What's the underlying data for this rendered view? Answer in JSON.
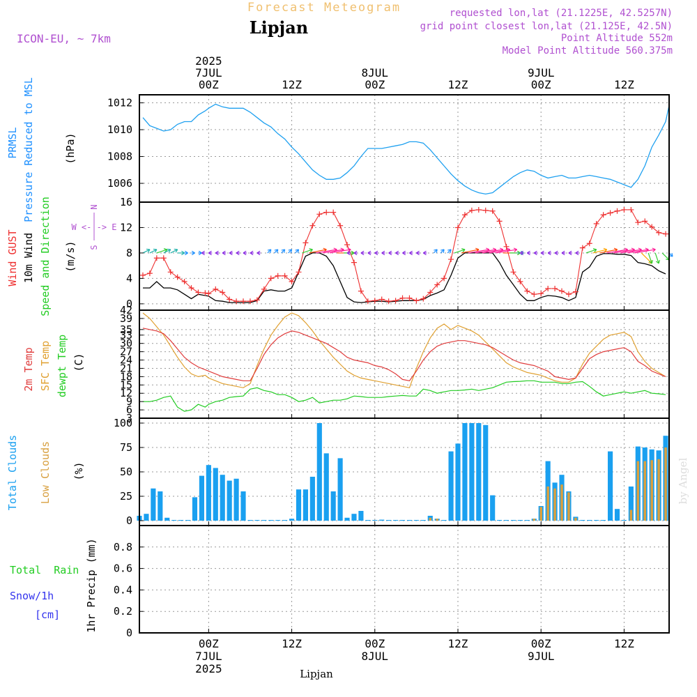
{
  "header": {
    "title": "Forecast Meteogram",
    "location": "Lipjan",
    "model": "ICON-EU, ~ 7km",
    "requested": "requested lon,lat (21.1225E, 42.5257N)",
    "gridpoint": "grid point closest lon,lat (21.125E, 42.5N)",
    "point_altitude": "Point Altitude 552m",
    "model_altitude": "Model Point Altitude 560.375m"
  },
  "time_axis": {
    "top_labels": [
      {
        "t": 0,
        "lines": [
          "2025",
          "7JUL",
          "00Z"
        ]
      },
      {
        "t": 12,
        "lines": [
          "",
          "",
          "12Z"
        ]
      },
      {
        "t": 24,
        "lines": [
          "",
          "8JUL",
          "00Z"
        ]
      },
      {
        "t": 36,
        "lines": [
          "",
          "",
          "12Z"
        ]
      },
      {
        "t": 48,
        "lines": [
          "",
          "9JUL",
          "00Z"
        ]
      },
      {
        "t": 60,
        "lines": [
          "",
          "",
          "12Z"
        ]
      }
    ],
    "bottom_labels": [
      {
        "t": 0,
        "lines": [
          "00Z",
          "7JUL",
          "2025"
        ]
      },
      {
        "t": 12,
        "lines": [
          "12Z",
          "",
          ""
        ]
      },
      {
        "t": 24,
        "lines": [
          "00Z",
          "8JUL",
          ""
        ]
      },
      {
        "t": 36,
        "lines": [
          "12Z",
          "",
          ""
        ]
      },
      {
        "t": 48,
        "lines": [
          "00Z",
          "9JUL",
          ""
        ]
      },
      {
        "t": 60,
        "lines": [
          "12Z",
          "",
          ""
        ]
      }
    ],
    "footer_label": "Lipjan",
    "credit": "by Angel"
  },
  "panel_labels": {
    "pressure": {
      "line1": "PRMSL",
      "line2": "Pressure Reduced to MSL",
      "unit": "(hPa)",
      "color1": "#1e90ff",
      "color2": "#1e90ff"
    },
    "wind": {
      "gust": "Wind GUST",
      "wind": "10m Wind",
      "dir": "Speed and Direction",
      "unit": "(m/s)",
      "compass_we": "W <-|-> E",
      "compass_n": "N",
      "compass_s": "S"
    },
    "temp": {
      "t2m": "2m Temp",
      "sfc": "SFC Temp",
      "dew": "dewpt Temp",
      "unit": "(C)"
    },
    "cloud": {
      "total": "Total Clouds",
      "low": "Low Clouds",
      "unit": "(%)"
    },
    "precip": {
      "rain": "Total  Rain",
      "snow": "Snow/1h",
      "snow_unit": "[cm]",
      "axis": "1hr Precip (mm)"
    }
  },
  "colors": {
    "pressure": "#1ea0f0",
    "gust": "#ee3030",
    "wind": "#000000",
    "t2m": "#e03c3c",
    "sfc": "#e0a030",
    "dew": "#22cc22",
    "total_cloud": "#1aa0f0",
    "low_cloud": "#d8a040",
    "rain": "#22cc22",
    "snow": "#3333ee",
    "label_purple": "#b050d0"
  },
  "chart_data": [
    {
      "type": "line",
      "name": "pressure",
      "ylim": [
        1004.6,
        1012.6
      ],
      "yticks": [
        1006,
        1008,
        1010,
        1012
      ],
      "x": [
        -9.5,
        -8.5,
        -7.5,
        -6.5,
        -5.5,
        -4.5,
        -3.5,
        -2.5,
        -1.5,
        -0.5,
        0,
        1,
        2,
        3,
        4,
        5,
        6,
        7,
        8,
        9,
        10,
        11,
        12,
        13,
        14,
        15,
        16,
        17,
        18,
        19,
        20,
        21,
        22,
        23,
        24,
        25,
        26,
        27,
        28,
        29,
        30,
        31,
        32,
        33,
        34,
        35,
        36,
        37,
        38,
        39,
        40,
        41,
        42,
        43,
        44,
        45,
        46,
        47,
        48,
        49,
        50,
        51,
        52,
        53,
        54,
        55,
        56,
        57,
        58,
        59,
        60,
        61,
        62,
        63,
        64,
        65,
        66,
        66.5
      ],
      "values": [
        1010.9,
        1010.3,
        1010.1,
        1009.9,
        1010.0,
        1010.4,
        1010.6,
        1010.6,
        1011.1,
        1011.4,
        1011.6,
        1011.9,
        1011.7,
        1011.6,
        1011.6,
        1011.6,
        1011.3,
        1010.9,
        1010.5,
        1010.2,
        1009.7,
        1009.3,
        1008.7,
        1008.2,
        1007.6,
        1007.0,
        1006.6,
        1006.3,
        1006.3,
        1006.4,
        1006.8,
        1007.3,
        1008.0,
        1008.6,
        1008.6,
        1008.6,
        1008.7,
        1008.8,
        1008.9,
        1009.1,
        1009.1,
        1009.0,
        1008.5,
        1007.9,
        1007.3,
        1006.7,
        1006.2,
        1005.8,
        1005.5,
        1005.3,
        1005.2,
        1005.3,
        1005.7,
        1006.1,
        1006.5,
        1006.8,
        1007.0,
        1006.9,
        1006.6,
        1006.4,
        1006.5,
        1006.6,
        1006.4,
        1006.4,
        1006.5,
        1006.6,
        1006.5,
        1006.4,
        1006.3,
        1006.1,
        1005.9,
        1005.7,
        1006.3,
        1007.3,
        1008.7,
        1009.6,
        1010.6,
        1011.8
      ]
    },
    {
      "type": "line",
      "name": "wind",
      "ylim": [
        -1,
        16
      ],
      "yticks": [
        0,
        4,
        8,
        12,
        16
      ],
      "x": [
        -9.5,
        -8.5,
        -7.5,
        -6.5,
        -5.5,
        -4.5,
        -3.5,
        -2.5,
        -1.5,
        -0.5,
        0,
        1,
        2,
        3,
        4,
        5,
        6,
        7,
        8,
        9,
        10,
        11,
        12,
        13,
        14,
        15,
        16,
        17,
        18,
        19,
        20,
        21,
        22,
        23,
        24,
        25,
        26,
        27,
        28,
        29,
        30,
        31,
        32,
        33,
        34,
        35,
        36,
        37,
        38,
        39,
        40,
        41,
        42,
        43,
        44,
        45,
        46,
        47,
        48,
        49,
        50,
        51,
        52,
        53,
        54,
        55,
        56,
        57,
        58,
        59,
        60,
        61,
        62,
        63,
        64,
        65,
        66,
        66.5
      ],
      "gust": [
        4.5,
        4.8,
        7.2,
        7.2,
        5.0,
        4.2,
        3.5,
        2.5,
        1.8,
        1.7,
        1.6,
        2.3,
        1.8,
        0.7,
        0.4,
        0.4,
        0.4,
        0.6,
        2.3,
        4.0,
        4.4,
        4.4,
        3.5,
        5.0,
        9.6,
        12.3,
        14.1,
        14.4,
        14.4,
        12.3,
        9.3,
        6.5,
        2.0,
        0.4,
        0.5,
        0.7,
        0.4,
        0.5,
        0.9,
        0.9,
        0.5,
        0.8,
        1.8,
        3.0,
        4.0,
        7.0,
        12.0,
        14.0,
        14.7,
        14.8,
        14.7,
        14.6,
        13.0,
        9.0,
        5.0,
        3.5,
        2.0,
        1.5,
        1.6,
        2.4,
        2.4,
        2.0,
        1.5,
        1.9,
        8.8,
        9.5,
        12.6,
        14.0,
        14.3,
        14.6,
        14.8,
        14.8,
        12.8,
        13.0,
        12.1,
        11.2,
        11.0
      ],
      "wind": [
        2.5,
        2.5,
        3.5,
        2.5,
        2.5,
        2.2,
        1.5,
        0.8,
        1.5,
        1.3,
        1.2,
        0.5,
        0.4,
        0.2,
        0.2,
        0.2,
        0.2,
        0.5,
        2.0,
        2.2,
        2.0,
        2.0,
        2.5,
        5.0,
        7.5,
        8.0,
        8.0,
        7.5,
        6.0,
        3.5,
        1.0,
        0.3,
        0.2,
        0.3,
        0.4,
        0.4,
        0.3,
        0.4,
        0.5,
        0.5,
        0.5,
        0.7,
        1.3,
        1.7,
        2.2,
        4.5,
        7.2,
        8.0,
        8.0,
        8.0,
        8.0,
        8.0,
        6.5,
        4.5,
        3.0,
        1.5,
        0.5,
        0.5,
        1.0,
        1.3,
        1.2,
        1.0,
        0.5,
        1.0,
        5.0,
        5.8,
        7.5,
        7.9,
        7.9,
        7.8,
        7.8,
        7.6,
        6.5,
        6.3,
        6.0,
        5.2,
        4.7
      ],
      "arrow_x": [
        -9.5,
        -8.5,
        -7.5,
        -6.5,
        -5.5,
        -4.5,
        -3.5,
        -2.5,
        -1.5,
        -0.5,
        0.5,
        1.5,
        2.5,
        3.5,
        4.5,
        5.5,
        6.5,
        7.5,
        8.5,
        9.5,
        10.5,
        11.5,
        12.5,
        13.5,
        14.5,
        15.5,
        16.5,
        17.5,
        18.5,
        19.5,
        20.5,
        21.5,
        22.5,
        23.5,
        24.5,
        25.5,
        26.5,
        27.5,
        28.5,
        29.5,
        30.5,
        31.5,
        32.5,
        33.5,
        34.5,
        35.5,
        36.5,
        37.5,
        38.5,
        39.5,
        40.5,
        41.5,
        42.5,
        43.5,
        44.5,
        45.5,
        46.5,
        47.5,
        48.5,
        49.5,
        50.5,
        51.5,
        52.5,
        53.5,
        54.5,
        55.5,
        56.5,
        57.5,
        58.5,
        59.5,
        60.5,
        61.5,
        62.5,
        63.5,
        64.5,
        65.5,
        66.5
      ],
      "arrow_u": [
        2,
        2,
        3,
        2,
        2,
        2,
        1,
        1,
        1,
        -1,
        -1,
        -1,
        -1,
        -1,
        -1,
        -1,
        -1,
        -1,
        1,
        1,
        1,
        1,
        1,
        3,
        5,
        6,
        6,
        6,
        5,
        3,
        -1,
        -1,
        -1,
        -1,
        -1,
        -1,
        -1,
        -1,
        -1,
        -1,
        -1,
        -1,
        1,
        1,
        1,
        3,
        5,
        6,
        6,
        6,
        6,
        6,
        5,
        3,
        2,
        -1,
        -1,
        -1,
        -1,
        -1,
        -1,
        -1,
        -1,
        -1,
        3,
        4,
        5,
        6,
        6,
        6,
        6,
        6,
        3,
        1,
        1,
        2,
        1
      ],
      "arrow_v": [
        1,
        1,
        1,
        1,
        1,
        0,
        0,
        0,
        0,
        0,
        0,
        0,
        0,
        0,
        0,
        0,
        0,
        0,
        1,
        1,
        1,
        1,
        1,
        1,
        1,
        1,
        1,
        1,
        0,
        0,
        0,
        0,
        0,
        0,
        0,
        0,
        0,
        0,
        0,
        0,
        0,
        0,
        1,
        1,
        1,
        1,
        1,
        1,
        1,
        1,
        1,
        1,
        0,
        0,
        0,
        0,
        0,
        0,
        0,
        0,
        0,
        0,
        0,
        0,
        1,
        1,
        1,
        1,
        1,
        1,
        1,
        1,
        -3,
        -3,
        -3,
        -2,
        -1
      ]
    },
    {
      "type": "line",
      "name": "temperature",
      "ylim": [
        3,
        42
      ],
      "yticks": [
        3,
        6,
        9,
        12,
        15,
        18,
        21,
        24,
        27,
        30,
        33,
        35,
        39,
        42
      ],
      "x": [
        -9.5,
        -8.5,
        -7.5,
        -6.5,
        -5.5,
        -4.5,
        -3.5,
        -2.5,
        -1.5,
        -0.5,
        0,
        1,
        2,
        3,
        4,
        5,
        6,
        7,
        8,
        9,
        10,
        11,
        12,
        13,
        14,
        15,
        16,
        17,
        18,
        19,
        20,
        21,
        22,
        23,
        24,
        25,
        26,
        27,
        28,
        29,
        30,
        31,
        32,
        33,
        34,
        35,
        36,
        37,
        38,
        39,
        40,
        41,
        42,
        43,
        44,
        45,
        46,
        47,
        48,
        49,
        50,
        51,
        52,
        53,
        54,
        55,
        56,
        57,
        58,
        59,
        60,
        61,
        62,
        63,
        64,
        65,
        66,
        66.5
      ],
      "t2m": [
        35.5,
        35.0,
        34.5,
        33.5,
        31.0,
        28.0,
        25.0,
        23.0,
        21.5,
        20.5,
        20.0,
        19.0,
        18.0,
        17.5,
        17.0,
        16.5,
        16.5,
        21.0,
        26.0,
        29.5,
        32.0,
        33.5,
        34.5,
        34.0,
        33.0,
        32.0,
        31.0,
        30.0,
        28.5,
        27.0,
        25.0,
        24.0,
        23.5,
        23.0,
        22.0,
        21.5,
        20.5,
        19.0,
        17.0,
        16.5,
        20.0,
        24.0,
        27.0,
        29.0,
        30.0,
        30.5,
        31.0,
        31.0,
        30.5,
        30.0,
        29.5,
        28.5,
        27.0,
        25.5,
        24.0,
        23.0,
        22.5,
        22.0,
        21.0,
        20.0,
        18.0,
        17.5,
        17.0,
        17.5,
        21.0,
        24.5,
        26.0,
        27.0,
        27.5,
        28.0,
        28.5,
        27.0,
        23.5,
        22.0,
        20.0,
        19.0,
        18.0
      ],
      "sfc": [
        41.0,
        39.0,
        36.0,
        33.0,
        29.0,
        25.0,
        21.5,
        19.0,
        18.0,
        18.5,
        17.5,
        16.5,
        15.5,
        15.0,
        14.5,
        14.0,
        15.5,
        22.0,
        28.0,
        33.0,
        36.5,
        39.5,
        41.0,
        40.0,
        37.5,
        34.5,
        31.0,
        28.0,
        25.0,
        22.5,
        20.0,
        18.5,
        17.5,
        17.0,
        16.5,
        16.0,
        15.5,
        15.0,
        14.5,
        14.0,
        21.0,
        27.0,
        32.0,
        35.5,
        37.0,
        35.0,
        36.5,
        35.5,
        34.5,
        33.0,
        30.5,
        28.0,
        25.5,
        23.0,
        21.5,
        20.5,
        19.5,
        19.0,
        18.5,
        17.5,
        16.5,
        16.0,
        16.0,
        17.5,
        22.5,
        26.5,
        29.0,
        31.5,
        33.0,
        33.5,
        34.0,
        32.5,
        27.0,
        23.5,
        21.0,
        19.5,
        18.0
      ],
      "dew": [
        9.0,
        9.0,
        9.5,
        10.5,
        11.0,
        7.0,
        5.5,
        6.0,
        8.0,
        7.0,
        8.0,
        9.0,
        9.5,
        10.5,
        10.8,
        11.0,
        13.5,
        14.0,
        13.0,
        12.5,
        11.5,
        11.5,
        10.5,
        9.0,
        9.5,
        10.5,
        8.5,
        9.0,
        9.5,
        9.5,
        10.0,
        11.0,
        10.8,
        10.5,
        10.5,
        10.5,
        10.8,
        11.0,
        11.2,
        11.0,
        11.0,
        13.5,
        13.0,
        12.0,
        12.5,
        13.0,
        13.0,
        13.2,
        13.5,
        13.0,
        13.5,
        14.0,
        15.0,
        16.0,
        16.2,
        16.3,
        16.5,
        16.5,
        16.0,
        16.0,
        16.0,
        15.5,
        15.5,
        16.0,
        16.2,
        14.5,
        12.5,
        11.0,
        11.5,
        12.0,
        12.5,
        12.0,
        12.5,
        13.0,
        12.0,
        11.8,
        11.5
      ]
    },
    {
      "type": "bar",
      "name": "clouds",
      "ylim": [
        -5,
        105
      ],
      "yticks": [
        0,
        25,
        50,
        75,
        100
      ],
      "x": [
        -10,
        -9,
        -8,
        -7,
        -6,
        -5,
        -4,
        -3,
        -2,
        -1,
        0,
        1,
        2,
        3,
        4,
        5,
        6,
        7,
        8,
        9,
        10,
        11,
        12,
        13,
        14,
        15,
        16,
        17,
        18,
        19,
        20,
        21,
        22,
        23,
        24,
        25,
        26,
        27,
        28,
        29,
        30,
        31,
        32,
        33,
        34,
        35,
        36,
        37,
        38,
        39,
        40,
        41,
        42,
        43,
        44,
        45,
        46,
        47,
        48,
        49,
        50,
        51,
        52,
        53,
        54,
        55,
        56,
        57,
        58,
        59,
        60,
        61,
        62,
        63,
        64,
        65,
        66
      ],
      "total": [
        5,
        7,
        33,
        30,
        3,
        0,
        0,
        0,
        24,
        46,
        57,
        54,
        47,
        41,
        43,
        30,
        0,
        0,
        0,
        0,
        0,
        0,
        2,
        32,
        32,
        45,
        100,
        69,
        30,
        64,
        3,
        7,
        10,
        0,
        0,
        1,
        0,
        0,
        0,
        0,
        0,
        0,
        5,
        2,
        0,
        71,
        79,
        100,
        100,
        100,
        98,
        26,
        0,
        0,
        0,
        0,
        0,
        2,
        15,
        61,
        39,
        47,
        30,
        4,
        0,
        0,
        0,
        0,
        71,
        12,
        0,
        35,
        76,
        75,
        73,
        72,
        87
      ],
      "low": [
        0,
        0,
        0,
        0,
        0,
        0,
        0,
        0,
        0,
        0,
        0,
        0,
        0,
        0,
        0,
        0,
        0,
        0,
        0,
        0,
        0,
        0,
        0,
        0,
        0,
        0,
        0,
        0,
        0,
        0,
        0,
        0,
        0,
        0,
        0,
        0,
        0,
        0,
        0,
        0,
        0,
        0,
        3,
        2,
        0,
        0,
        0,
        0,
        0,
        0,
        0,
        0,
        0,
        0,
        0,
        0,
        0,
        2,
        14,
        35,
        33,
        37,
        29,
        3,
        0,
        0,
        0,
        0,
        0,
        0,
        0,
        11,
        61,
        61,
        62,
        63,
        75
      ]
    },
    {
      "type": "bar",
      "name": "precip",
      "ylim": [
        0,
        1.0
      ],
      "yticks": [
        0,
        0.2,
        0.4,
        0.6,
        0.8
      ],
      "ytick_labels": [
        "0",
        "0.2",
        "0.4",
        "0.6",
        "0.8"
      ],
      "values": []
    }
  ]
}
